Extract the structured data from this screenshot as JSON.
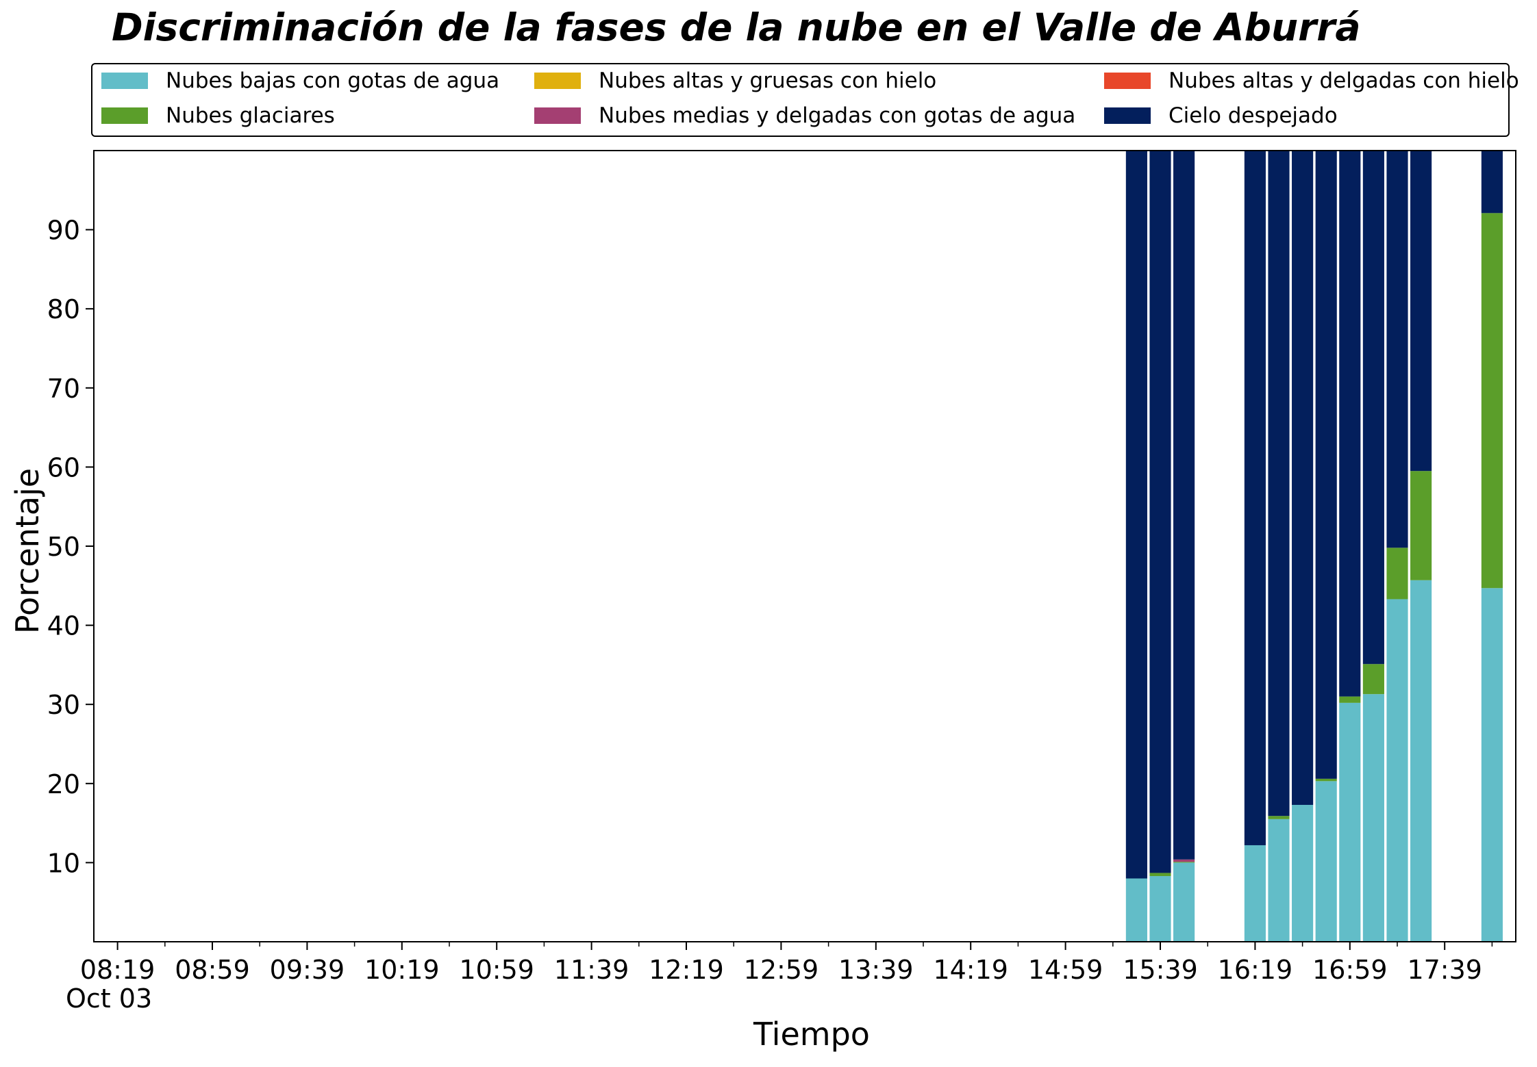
{
  "chart_data": {
    "type": "bar",
    "stacked": true,
    "title": "Discriminación de la fases de la nube en el Valle de Aburrá",
    "xlabel": "Tiempo",
    "ylabel": "Porcentaje",
    "date_label": "Oct 03",
    "grid": false,
    "legend_position": "top",
    "ylim": [
      0,
      100
    ],
    "y_ticks": [
      10,
      20,
      30,
      40,
      50,
      60,
      70,
      80,
      90
    ],
    "x_range": [
      "08:09",
      "18:09"
    ],
    "x_ticks": [
      "08:19",
      "08:59",
      "09:39",
      "10:19",
      "10:59",
      "11:39",
      "12:19",
      "12:59",
      "13:39",
      "14:19",
      "14:59",
      "15:39",
      "16:19",
      "16:59",
      "17:39"
    ],
    "x_minor_ticks": [
      "08:39",
      "09:19",
      "09:59",
      "10:39",
      "11:19",
      "11:59",
      "12:39",
      "13:19",
      "13:59",
      "14:39",
      "15:19",
      "15:59",
      "16:39",
      "17:19",
      "17:59"
    ],
    "bar_width_minutes": 9,
    "categories": [
      "15:29",
      "15:39",
      "15:49",
      "16:19",
      "16:29",
      "16:39",
      "16:49",
      "16:59",
      "17:09",
      "17:19",
      "17:29",
      "17:59"
    ],
    "series": [
      {
        "name": "Nubes bajas con gotas de agua",
        "color": "#62bdc8",
        "values": [
          8.0,
          8.3,
          10.0,
          12.2,
          15.5,
          17.3,
          20.3,
          30.2,
          31.3,
          43.3,
          45.7,
          44.7
        ]
      },
      {
        "name": "Nubes glaciares",
        "color": "#5b9e2a",
        "values": [
          0,
          0.4,
          0.1,
          0,
          0.4,
          0,
          0.3,
          0.8,
          3.8,
          6.5,
          13.8,
          47.4
        ]
      },
      {
        "name": "Nubes altas y gruesas con hielo",
        "color": "#e0b00e",
        "values": [
          0,
          0,
          0,
          0,
          0,
          0,
          0,
          0,
          0,
          0,
          0,
          0
        ]
      },
      {
        "name": "Nubes medias y delgadas con gotas de agua",
        "color": "#a43f72",
        "values": [
          0,
          0,
          0.3,
          0,
          0,
          0,
          0,
          0,
          0,
          0,
          0,
          0
        ]
      },
      {
        "name": "Nubes altas y delgadas con hielo",
        "color": "#e8472a",
        "values": [
          0,
          0,
          0,
          0,
          0,
          0,
          0,
          0,
          0,
          0,
          0,
          0
        ]
      },
      {
        "name": "Cielo despejado",
        "color": "#031f5c",
        "values": [
          92.0,
          91.3,
          89.6,
          87.8,
          84.1,
          82.7,
          79.4,
          69.0,
          64.9,
          50.2,
          40.5,
          7.9
        ]
      }
    ]
  }
}
